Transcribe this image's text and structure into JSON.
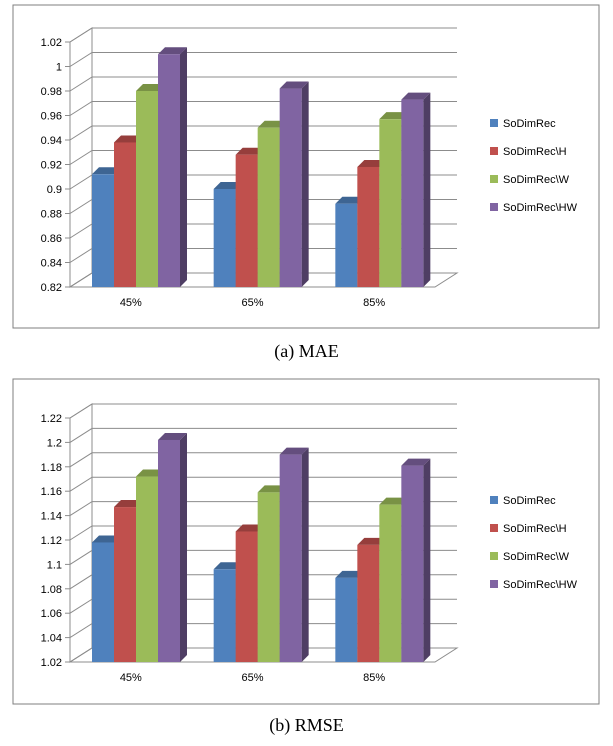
{
  "chart_data": [
    {
      "type": "bar",
      "categories": [
        "45%",
        "65%",
        "85%"
      ],
      "series": [
        {
          "name": "SoDimRec",
          "values": [
            0.912,
            0.9,
            0.888
          ],
          "color": "#4F81BD"
        },
        {
          "name": "SoDimRec\\H",
          "values": [
            0.938,
            0.928,
            0.918
          ],
          "color": "#C0504D"
        },
        {
          "name": "SoDimRec\\W",
          "values": [
            0.98,
            0.95,
            0.957
          ],
          "color": "#9BBB59"
        },
        {
          "name": "SoDimRec\\HW",
          "values": [
            1.01,
            0.982,
            0.973
          ],
          "color": "#8064A2"
        }
      ],
      "ylim": [
        0.82,
        1.02
      ],
      "yticks": [
        "0.82",
        "0.84",
        "0.86",
        "0.88",
        "0.9",
        "0.92",
        "0.94",
        "0.96",
        "0.98",
        "1",
        "1.02"
      ],
      "grid": true,
      "legend_position": "right",
      "caption": "(a)  MAE"
    },
    {
      "type": "bar",
      "categories": [
        "45%",
        "65%",
        "85%"
      ],
      "series": [
        {
          "name": "SoDimRec",
          "values": [
            1.118,
            1.096,
            1.089
          ],
          "color": "#4F81BD"
        },
        {
          "name": "SoDimRec\\H",
          "values": [
            1.147,
            1.127,
            1.116
          ],
          "color": "#C0504D"
        },
        {
          "name": "SoDimRec\\W",
          "values": [
            1.172,
            1.159,
            1.149
          ],
          "color": "#9BBB59"
        },
        {
          "name": "SoDimRec\\HW",
          "values": [
            1.202,
            1.19,
            1.181
          ],
          "color": "#8064A2"
        }
      ],
      "ylim": [
        1.02,
        1.22
      ],
      "yticks": [
        "1.02",
        "1.04",
        "1.06",
        "1.08",
        "1.1",
        "1.12",
        "1.14",
        "1.16",
        "1.18",
        "1.2",
        "1.22"
      ],
      "grid": true,
      "legend_position": "right",
      "caption": "(b)  RMSE"
    }
  ]
}
